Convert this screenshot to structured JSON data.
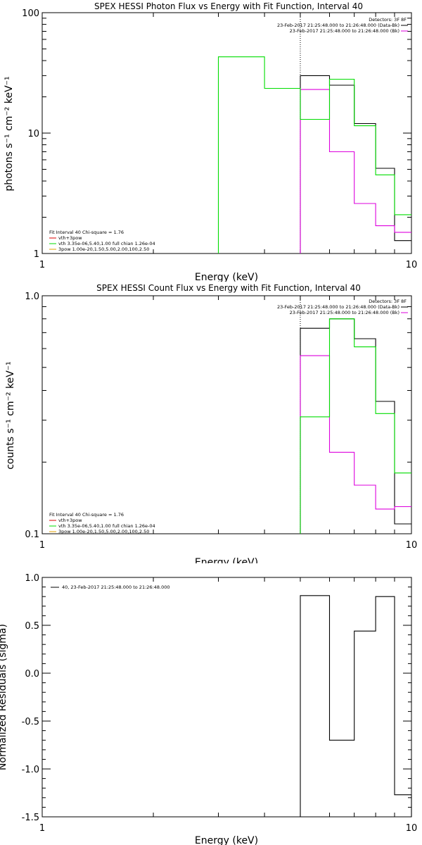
{
  "colors": {
    "black": "#000000",
    "green": "#00dd00",
    "magenta": "#dd00dd",
    "red": "#dd0000",
    "orange": "#e0a000"
  },
  "chart_data": [
    {
      "type": "line",
      "step": true,
      "title": "SPEX HESSI Photon Flux vs Energy with Fit Function, Interval 40",
      "xlabel": "Energy (keV)",
      "ylabel": "photons s⁻¹ cm⁻² keV⁻¹",
      "xscale": "log",
      "yscale": "log",
      "xlim": [
        1,
        10
      ],
      "ylim": [
        1,
        100
      ],
      "xticks": [
        "1",
        "10"
      ],
      "yticks": [
        {
          "v": 1,
          "label": "1"
        },
        {
          "v": 10,
          "label": "10"
        },
        {
          "v": 100,
          "label": "100"
        }
      ],
      "vline_x": 5.0,
      "legend_tr": {
        "header": "Detectors: 3F 8F",
        "lines": [
          {
            "text": "23-Feb-2017 21:25:48.000 to 21:26:48.000 (Data-Bk)",
            "color": "#000000"
          },
          {
            "text": "23-Feb-2017 21:25:48.000 to 21:26:48.000 (Bk)",
            "color": "#dd00dd"
          }
        ]
      },
      "legend_bl": {
        "header": "Fit Interval 40   Chi-square = 1.76",
        "lines": [
          {
            "text": "vth+3pow",
            "color": "#dd0000"
          },
          {
            "text": "vth 3.35e-06,5.40,1.00  full chian 1.26e-04",
            "color": "#00dd00"
          },
          {
            "text": "3pow 1.00e-20,1.50,5.00,2.00,100,2.50",
            "color": "#e0a000"
          }
        ]
      },
      "series": [
        {
          "role": "data",
          "color": "#000000",
          "bins": [
            [
              5.0,
              6.0,
              30
            ],
            [
              6.0,
              7.0,
              25
            ],
            [
              7.0,
              8.0,
              12
            ],
            [
              8.0,
              9.0,
              5.1
            ],
            [
              9.0,
              10.0,
              1.28
            ]
          ]
        },
        {
          "role": "background",
          "color": "#dd00dd",
          "bins": [
            [
              5.0,
              6.0,
              23
            ],
            [
              6.0,
              7.0,
              7
            ],
            [
              7.0,
              8.0,
              2.6
            ],
            [
              8.0,
              9.0,
              1.7
            ],
            [
              9.0,
              10.0,
              1.5
            ]
          ]
        },
        {
          "role": "fit",
          "color": "#00dd00",
          "bins": [
            [
              3.0,
              4.0,
              43
            ],
            [
              4.0,
              5.0,
              23.5
            ],
            [
              5.0,
              6.0,
              13
            ],
            [
              6.0,
              7.0,
              28
            ],
            [
              7.0,
              8.0,
              11.5
            ],
            [
              8.0,
              9.0,
              4.5
            ],
            [
              9.0,
              10.0,
              2.1
            ]
          ]
        }
      ]
    },
    {
      "type": "line",
      "step": true,
      "title": "SPEX HESSI Count Flux vs Energy with Fit Function, Interval 40",
      "xlabel": "Energy (keV)",
      "ylabel": "counts s⁻¹ cm⁻² keV⁻¹",
      "xscale": "log",
      "yscale": "log",
      "xlim": [
        1,
        10
      ],
      "ylim": [
        0.1,
        1.0
      ],
      "xticks": [
        "1",
        "10"
      ],
      "yticks": [
        {
          "v": 0.1,
          "label": "0.1"
        },
        {
          "v": 1.0,
          "label": "1.0"
        }
      ],
      "vline_x": 5.0,
      "legend_tr": {
        "header": "Detectors: 3F 8F",
        "lines": [
          {
            "text": "23-Feb-2017 21:25:48.000 to 21:26:48.000 (Data-Bk)",
            "color": "#000000"
          },
          {
            "text": "23-Feb-2017 21:25:48.000 to 21:26:48.000 (Bk)",
            "color": "#dd00dd"
          }
        ]
      },
      "legend_bl": {
        "header": "Fit Interval 40   Chi-square = 1.76",
        "lines": [
          {
            "text": "vth+3pow",
            "color": "#dd0000"
          },
          {
            "text": "vth 3.35e-06,5.40,1.00  full chian 1.26e-04",
            "color": "#00dd00"
          },
          {
            "text": "3pow 1.00e-20,1.50,5.00,2.00,100,2.50",
            "color": "#e0a000"
          }
        ]
      },
      "series": [
        {
          "role": "data",
          "color": "#000000",
          "bins": [
            [
              5.0,
              6.0,
              0.73
            ],
            [
              6.0,
              7.0,
              0.8
            ],
            [
              7.0,
              8.0,
              0.66
            ],
            [
              8.0,
              9.0,
              0.36
            ],
            [
              9.0,
              10.0,
              0.11
            ]
          ]
        },
        {
          "role": "background",
          "color": "#dd00dd",
          "bins": [
            [
              5.0,
              6.0,
              0.56
            ],
            [
              6.0,
              7.0,
              0.22
            ],
            [
              7.0,
              8.0,
              0.16
            ],
            [
              8.0,
              9.0,
              0.127
            ],
            [
              9.0,
              10.0,
              0.13
            ]
          ]
        },
        {
          "role": "fit",
          "color": "#00dd00",
          "bins": [
            [
              5.0,
              6.0,
              0.31
            ],
            [
              6.0,
              7.0,
              0.8
            ],
            [
              7.0,
              8.0,
              0.61
            ],
            [
              8.0,
              9.0,
              0.32
            ],
            [
              9.0,
              10.0,
              0.18
            ]
          ]
        }
      ]
    },
    {
      "type": "line",
      "step": true,
      "title": "",
      "xlabel": "Energy (keV)",
      "ylabel": "Normalized Residuals (sigma)",
      "xscale": "log",
      "yscale": "linear",
      "xlim": [
        1,
        10
      ],
      "ylim": [
        -1.5,
        1.0
      ],
      "xticks": [
        "1",
        "10"
      ],
      "yticks": [
        {
          "v": 1.0,
          "label": "1.0"
        },
        {
          "v": 0.5,
          "label": "0.5"
        },
        {
          "v": 0.0,
          "label": "0.0"
        },
        {
          "v": -0.5,
          "label": "-0.5"
        },
        {
          "v": -1.0,
          "label": "-1.0"
        },
        {
          "v": -1.5,
          "label": "-1.5"
        }
      ],
      "legend_tl": {
        "lines": [
          {
            "text": "40, 23-Feb-2017 21:25:48.000 to 21:26:48.000",
            "color": "#000000"
          }
        ]
      },
      "series": [
        {
          "role": "residuals",
          "color": "#000000",
          "bins": [
            [
              5.0,
              6.0,
              0.81
            ],
            [
              6.0,
              7.0,
              -0.7
            ],
            [
              7.0,
              8.0,
              0.44
            ],
            [
              8.0,
              9.0,
              0.8
            ],
            [
              9.0,
              10.0,
              -1.27
            ]
          ]
        }
      ]
    }
  ]
}
